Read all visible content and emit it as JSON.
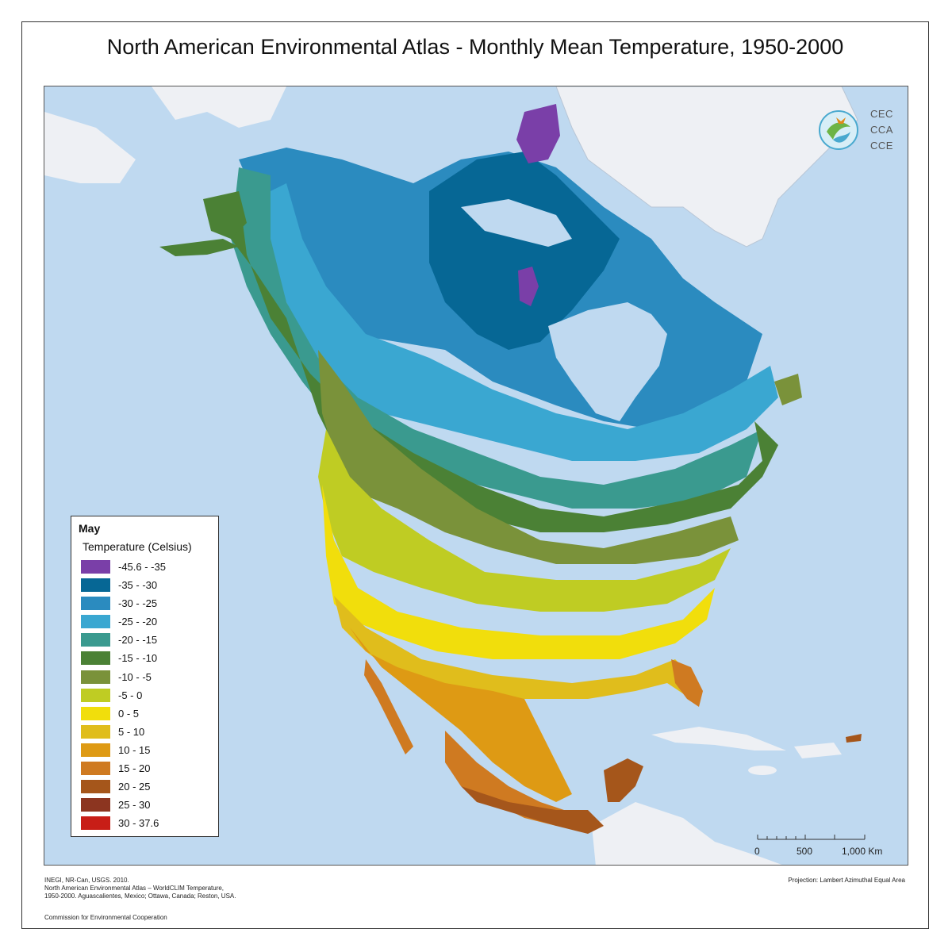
{
  "title": "North American Environmental Atlas - Monthly Mean Temperature, 1950-2000",
  "legend": {
    "month": "May",
    "subtitle": "Temperature (Celsius)",
    "items": [
      {
        "label": "-45.6 - -35",
        "color": "#7a3fa8"
      },
      {
        "label": "-35 - -30",
        "color": "#066795"
      },
      {
        "label": "-30 - -25",
        "color": "#2b8bbf"
      },
      {
        "label": "-25 - -20",
        "color": "#3aa7d1"
      },
      {
        "label": "-20 - -15",
        "color": "#3a9a8f"
      },
      {
        "label": "-15 - -10",
        "color": "#4b8135"
      },
      {
        "label": "-10 - -5",
        "color": "#7a923a"
      },
      {
        "label": "-5 - 0",
        "color": "#bfcc23"
      },
      {
        "label": "0 - 5",
        "color": "#f1de0c"
      },
      {
        "label": "5 - 10",
        "color": "#e0bd1c"
      },
      {
        "label": "10 - 15",
        "color": "#de9a14"
      },
      {
        "label": "15 - 20",
        "color": "#cf7a21"
      },
      {
        "label": "20 - 25",
        "color": "#a5561b"
      },
      {
        "label": "25 - 30",
        "color": "#8c3520"
      },
      {
        "label": "30 - 37.6",
        "color": "#c81e17"
      }
    ]
  },
  "logo": {
    "line1": "CEC",
    "line2": "CCA",
    "line3": "CCE"
  },
  "scale": {
    "label0": "0",
    "label1": "500",
    "label2": "1,000 Km"
  },
  "credits": {
    "line1": "INEGI, NR-Can, USGS. 2010.",
    "line2": "North American Environmental Atlas – WorldCLIM Temperature,",
    "line3": "1950-2000. Aguascalientes, Mexico; Ottawa, Canada; Reston, USA.",
    "commission": "Commission for Environmental Cooperation"
  },
  "projection": "Projection: Lambert Azimuthal Equal Area",
  "colors": {
    "ocean": "#bfd9f0",
    "land_other": "#eef0f4"
  }
}
